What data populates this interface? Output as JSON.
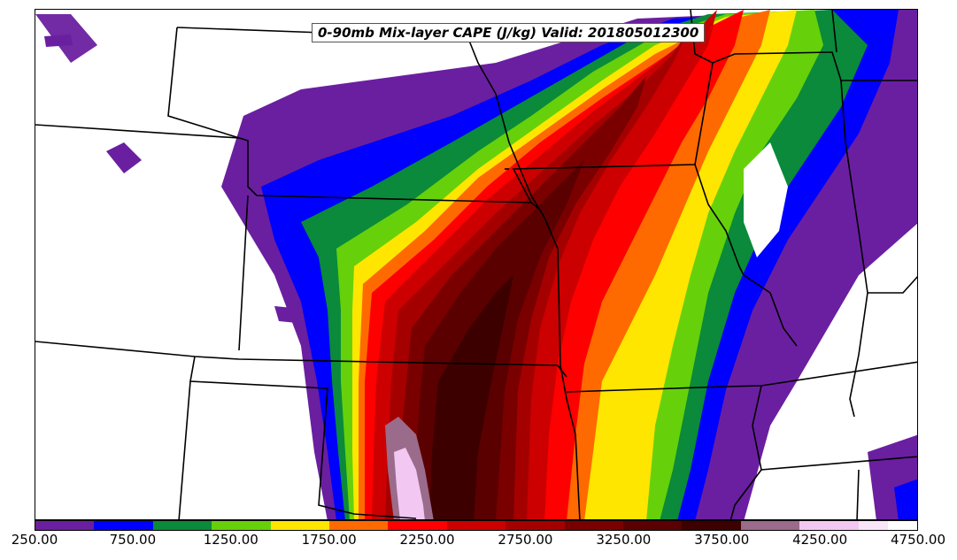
{
  "title": "0-90mb Mix-layer CAPE (J/kg) Valid: 201805012300",
  "colorbar": {
    "min": 250,
    "max": 4750,
    "step": 250,
    "colors": [
      "#6a1fa0",
      "#6a1fa0",
      "#0000ff",
      "#0000ff",
      "#0a8a3a",
      "#0a8a3a",
      "#66d10a",
      "#66d10a",
      "#ffe600",
      "#ffe600",
      "#ff6a00",
      "#ff6a00",
      "#ff0000",
      "#ff0000",
      "#cc0000",
      "#cc0000",
      "#a50000",
      "#a50000",
      "#7a0000",
      "#7a0000",
      "#5a0000",
      "#5a0000",
      "#3d0000",
      "#3d0000",
      "#9a6b8a",
      "#9a6b8a",
      "#f2c8f2",
      "#f2c8f2",
      "#f8e6f8",
      "#ffffff"
    ],
    "tick_labels": [
      "250.00",
      "750.00",
      "1250.00",
      "1750.00",
      "2250.00",
      "2750.00",
      "3250.00",
      "3750.00",
      "4250.00",
      "4750.00"
    ]
  },
  "map": {
    "field": "0-90mb Mix-layer CAPE",
    "units": "J/kg",
    "valid": "201805012300"
  }
}
